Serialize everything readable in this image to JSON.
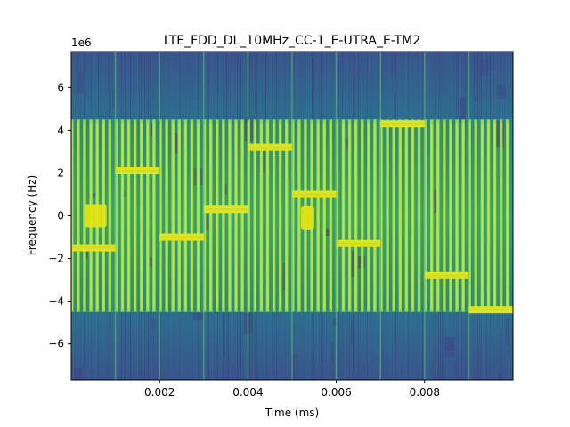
{
  "chart_data": {
    "type": "heatmap",
    "subtype": "spectrogram",
    "title": "LTE_FDD_DL_10MHz_CC-1_E-UTRA_E-TM2",
    "xlabel": "Time (ms)",
    "ylabel": "Frequency (Hz)",
    "y_offset_label": "1e6",
    "xlim": [
      0,
      0.01
    ],
    "ylim": [
      -7.68,
      7.68
    ],
    "x_ticks": [
      0.002,
      0.004,
      0.006,
      0.008
    ],
    "x_tick_labels": [
      "0.002",
      "0.004",
      "0.006",
      "0.008"
    ],
    "y_ticks": [
      -6,
      -4,
      -2,
      0,
      2,
      4,
      6
    ],
    "y_tick_labels": [
      "−6",
      "−4",
      "−2",
      "0",
      "2",
      "4",
      "6"
    ],
    "y_unit_scale": 1000000,
    "colormap": "viridis",
    "occupied_band": [
      -4.5,
      4.5
    ],
    "symbol_period": 7.14e-05,
    "symbols_per_slot": 7,
    "slots": [
      {
        "t_start": 0.0,
        "t_end": 0.001,
        "freq": -1.5,
        "secondary_freq": 0.0,
        "secondary_t": [
          0.0003,
          0.0008
        ]
      },
      {
        "t_start": 0.001,
        "t_end": 0.002,
        "freq": 2.1
      },
      {
        "t_start": 0.002,
        "t_end": 0.003,
        "freq": -1.0
      },
      {
        "t_start": 0.003,
        "t_end": 0.004,
        "freq": 0.3
      },
      {
        "t_start": 0.004,
        "t_end": 0.005,
        "freq": 3.2
      },
      {
        "t_start": 0.005,
        "t_end": 0.006,
        "freq": 1.0,
        "secondary_freq": -0.1,
        "secondary_t": [
          0.0052,
          0.0055
        ]
      },
      {
        "t_start": 0.006,
        "t_end": 0.007,
        "freq": -1.3
      },
      {
        "t_start": 0.007,
        "t_end": 0.008,
        "freq": 4.3
      },
      {
        "t_start": 0.008,
        "t_end": 0.009,
        "freq": -2.8
      },
      {
        "t_start": 0.009,
        "t_end": 0.01,
        "freq": -4.4
      }
    ],
    "colors": {
      "background": "#3b5f8a",
      "band": "#2a9a8a",
      "noise_dark": "#414487",
      "symbol_line": "#9ed93a",
      "signal": "#e2e418"
    }
  }
}
